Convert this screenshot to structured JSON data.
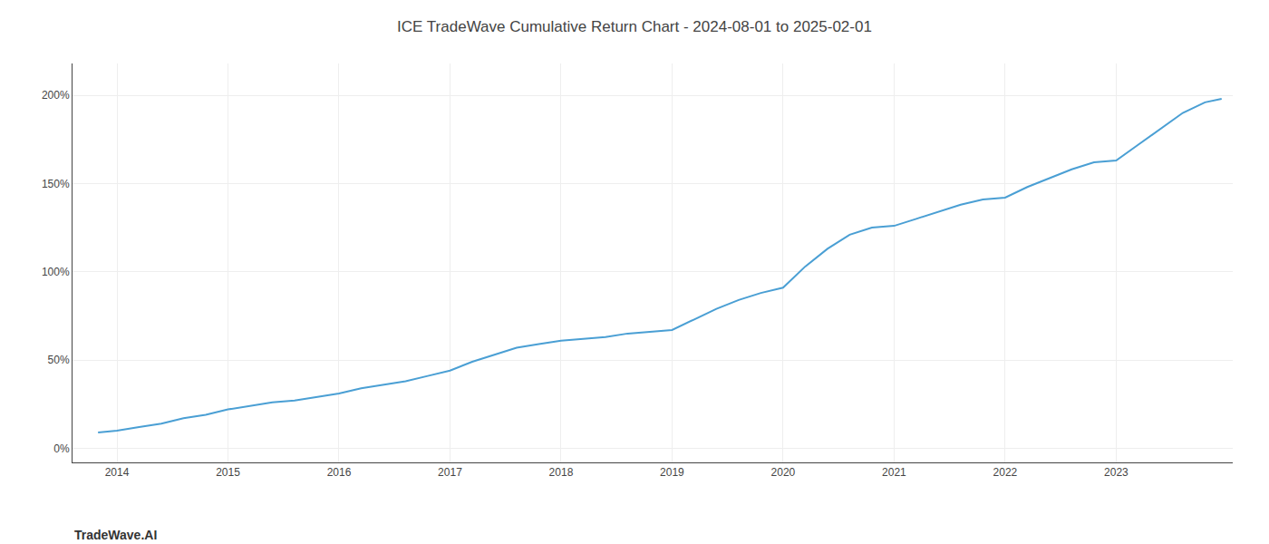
{
  "chart_data": {
    "type": "line",
    "title": "ICE TradeWave Cumulative Return Chart - 2024-08-01 to 2025-02-01",
    "annotations": [
      "TradeWave.AI"
    ],
    "x": [
      2013.83,
      2014.0,
      2014.2,
      2014.4,
      2014.6,
      2014.8,
      2015.0,
      2015.2,
      2015.4,
      2015.6,
      2015.8,
      2016.0,
      2016.2,
      2016.4,
      2016.6,
      2016.8,
      2017.0,
      2017.2,
      2017.4,
      2017.6,
      2017.8,
      2018.0,
      2018.2,
      2018.4,
      2018.6,
      2018.8,
      2019.0,
      2019.2,
      2019.4,
      2019.6,
      2019.8,
      2020.0,
      2020.2,
      2020.4,
      2020.6,
      2020.8,
      2021.0,
      2021.2,
      2021.4,
      2021.6,
      2021.8,
      2022.0,
      2022.2,
      2022.4,
      2022.6,
      2022.8,
      2023.0,
      2023.2,
      2023.4,
      2023.6,
      2023.8,
      2023.95
    ],
    "values": [
      9,
      10,
      12,
      14,
      17,
      19,
      22,
      24,
      26,
      27,
      29,
      31,
      34,
      36,
      38,
      41,
      44,
      49,
      53,
      57,
      59,
      61,
      62,
      63,
      65,
      66,
      67,
      73,
      79,
      84,
      88,
      91,
      103,
      113,
      121,
      125,
      126,
      130,
      134,
      138,
      141,
      142,
      148,
      153,
      158,
      162,
      163,
      172,
      181,
      190,
      196,
      198
    ],
    "color": "#4a9fd4",
    "xlim": [
      2013.6,
      2024.05
    ],
    "xticks": [
      2014,
      2015,
      2016,
      2017,
      2018,
      2019,
      2020,
      2021,
      2022,
      2023
    ],
    "ylim": [
      -8,
      218
    ],
    "yticks": [
      {
        "value": 0,
        "label": "0%"
      },
      {
        "value": 50,
        "label": "50%"
      },
      {
        "value": 100,
        "label": "100%"
      },
      {
        "value": 150,
        "label": "150%"
      },
      {
        "value": 200,
        "label": "200%"
      }
    ],
    "grid": true
  }
}
